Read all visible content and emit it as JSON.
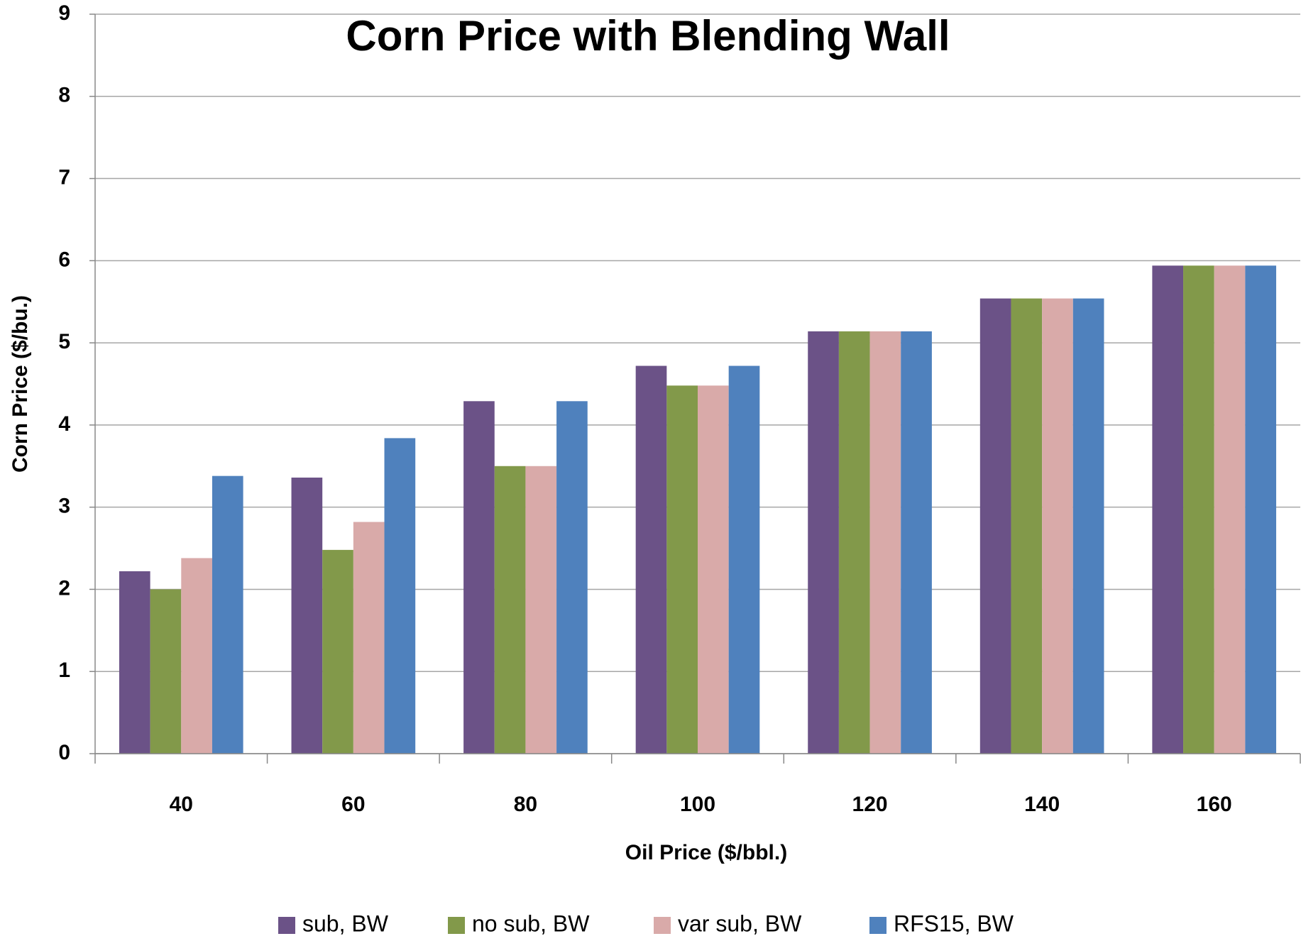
{
  "chart_data": {
    "type": "bar",
    "title": "Corn Price with Blending Wall",
    "x_label": "Oil Price ($/bbl.)",
    "y_label": "Corn Price ($/bu.)",
    "categories": [
      "40",
      "60",
      "80",
      "100",
      "120",
      "140",
      "160"
    ],
    "series": [
      {
        "name": "sub, BW",
        "color": "#6b5287",
        "values": [
          2.22,
          3.36,
          4.29,
          4.72,
          5.14,
          5.54,
          5.94
        ]
      },
      {
        "name": "no sub, BW",
        "color": "#82994a",
        "values": [
          2.0,
          2.48,
          3.5,
          4.48,
          5.14,
          5.54,
          5.94
        ]
      },
      {
        "name": "var sub, BW",
        "color": "#d9aaa9",
        "values": [
          2.38,
          2.82,
          3.5,
          4.48,
          5.14,
          5.54,
          5.94
        ]
      },
      {
        "name": "RFS15, BW",
        "color": "#4f81bd",
        "values": [
          3.38,
          3.84,
          4.29,
          4.72,
          5.14,
          5.54,
          5.94
        ]
      }
    ],
    "ylim": [
      0,
      9
    ],
    "yticks": [
      0,
      1,
      2,
      3,
      4,
      5,
      6,
      7,
      8,
      9
    ],
    "grid": true,
    "legend": "bottom"
  }
}
